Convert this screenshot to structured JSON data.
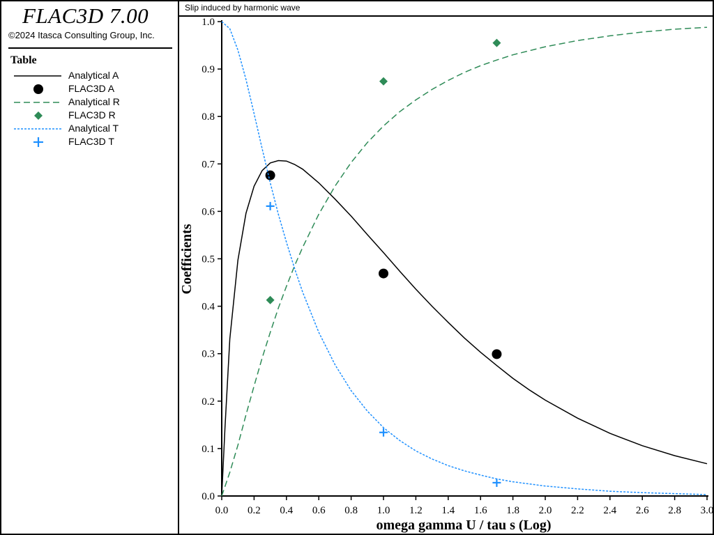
{
  "app": {
    "title": "FLAC3D 7.00",
    "copyright": "©2024 Itasca Consulting Group, Inc."
  },
  "legend": {
    "heading": "Table",
    "items": [
      {
        "label": "Analytical A",
        "symbol": "solid-line",
        "color": "#000000"
      },
      {
        "label": "FLAC3D A",
        "symbol": "circle",
        "color": "#000000"
      },
      {
        "label": "Analytical R",
        "symbol": "dashed-line",
        "color": "#2e8b57"
      },
      {
        "label": "FLAC3D R",
        "symbol": "diamond",
        "color": "#2e8b57"
      },
      {
        "label": "Analytical T",
        "symbol": "dotted-line",
        "color": "#1e90ff"
      },
      {
        "label": "FLAC3D T",
        "symbol": "plus",
        "color": "#1e90ff"
      }
    ]
  },
  "chart_data": {
    "type": "line",
    "title": "Slip induced by harmonic wave",
    "xlabel": "omega gamma U / tau  s (Log)",
    "ylabel": "Coefficients",
    "xlim": [
      0.0,
      3.0
    ],
    "ylim": [
      0.0,
      1.0
    ],
    "xticks": [
      "0.0",
      "0.2",
      "0.4",
      "0.6",
      "0.8",
      "1.0",
      "1.2",
      "1.4",
      "1.6",
      "1.8",
      "2.0",
      "2.2",
      "2.4",
      "2.6",
      "2.8",
      "3.0"
    ],
    "yticks": [
      "0.0",
      "0.1",
      "0.2",
      "0.3",
      "0.4",
      "0.5",
      "0.6",
      "0.7",
      "0.8",
      "0.9",
      "1.0"
    ],
    "series": [
      {
        "name": "Analytical A",
        "kind": "line",
        "style": "solid",
        "color": "#000000",
        "x": [
          0.0,
          0.02,
          0.05,
          0.1,
          0.15,
          0.2,
          0.25,
          0.3,
          0.35,
          0.4,
          0.45,
          0.5,
          0.6,
          0.7,
          0.8,
          0.9,
          1.0,
          1.1,
          1.2,
          1.3,
          1.4,
          1.5,
          1.6,
          1.7,
          1.8,
          1.9,
          2.0,
          2.2,
          2.4,
          2.6,
          2.8,
          3.0
        ],
        "y": [
          0.0,
          0.142,
          0.331,
          0.497,
          0.596,
          0.653,
          0.686,
          0.702,
          0.707,
          0.706,
          0.699,
          0.689,
          0.66,
          0.626,
          0.59,
          0.551,
          0.513,
          0.474,
          0.436,
          0.4,
          0.366,
          0.333,
          0.303,
          0.275,
          0.248,
          0.224,
          0.202,
          0.164,
          0.132,
          0.106,
          0.085,
          0.068
        ]
      },
      {
        "name": "FLAC3D A",
        "kind": "scatter",
        "marker": "circle",
        "color": "#000000",
        "x": [
          0.3,
          1.0,
          1.7
        ],
        "y": [
          0.676,
          0.469,
          0.299
        ]
      },
      {
        "name": "Analytical R",
        "kind": "line",
        "style": "dashed",
        "color": "#2e8b57",
        "x": [
          0.0,
          0.05,
          0.1,
          0.15,
          0.2,
          0.25,
          0.3,
          0.35,
          0.4,
          0.45,
          0.5,
          0.6,
          0.7,
          0.8,
          0.9,
          1.0,
          1.1,
          1.2,
          1.3,
          1.4,
          1.5,
          1.6,
          1.7,
          1.8,
          2.0,
          2.2,
          2.4,
          2.6,
          2.8,
          3.0
        ],
        "y": [
          0.0,
          0.05,
          0.107,
          0.171,
          0.232,
          0.291,
          0.345,
          0.396,
          0.442,
          0.485,
          0.524,
          0.594,
          0.653,
          0.703,
          0.745,
          0.78,
          0.81,
          0.835,
          0.857,
          0.876,
          0.893,
          0.907,
          0.919,
          0.93,
          0.947,
          0.96,
          0.97,
          0.978,
          0.984,
          0.988
        ]
      },
      {
        "name": "FLAC3D R",
        "kind": "scatter",
        "marker": "diamond",
        "color": "#2e8b57",
        "x": [
          0.3,
          1.0,
          1.7
        ],
        "y": [
          0.413,
          0.874,
          0.955
        ]
      },
      {
        "name": "Analytical T",
        "kind": "line",
        "style": "dotted",
        "color": "#1e90ff",
        "x": [
          0.0,
          0.05,
          0.1,
          0.15,
          0.2,
          0.25,
          0.3,
          0.35,
          0.4,
          0.45,
          0.5,
          0.6,
          0.7,
          0.8,
          0.9,
          1.0,
          1.1,
          1.2,
          1.3,
          1.4,
          1.5,
          1.6,
          1.7,
          1.8,
          2.0,
          2.2,
          2.4,
          2.6,
          2.8,
          3.0
        ],
        "y": [
          1.0,
          0.985,
          0.94,
          0.878,
          0.806,
          0.732,
          0.66,
          0.594,
          0.535,
          0.48,
          0.43,
          0.345,
          0.277,
          0.222,
          0.179,
          0.144,
          0.117,
          0.095,
          0.078,
          0.064,
          0.053,
          0.044,
          0.036,
          0.03,
          0.021,
          0.015,
          0.01,
          0.007,
          0.005,
          0.003
        ]
      },
      {
        "name": "FLAC3D T",
        "kind": "scatter",
        "marker": "plus",
        "color": "#1e90ff",
        "x": [
          0.3,
          1.0,
          1.7
        ],
        "y": [
          0.611,
          0.134,
          0.028
        ]
      }
    ]
  }
}
